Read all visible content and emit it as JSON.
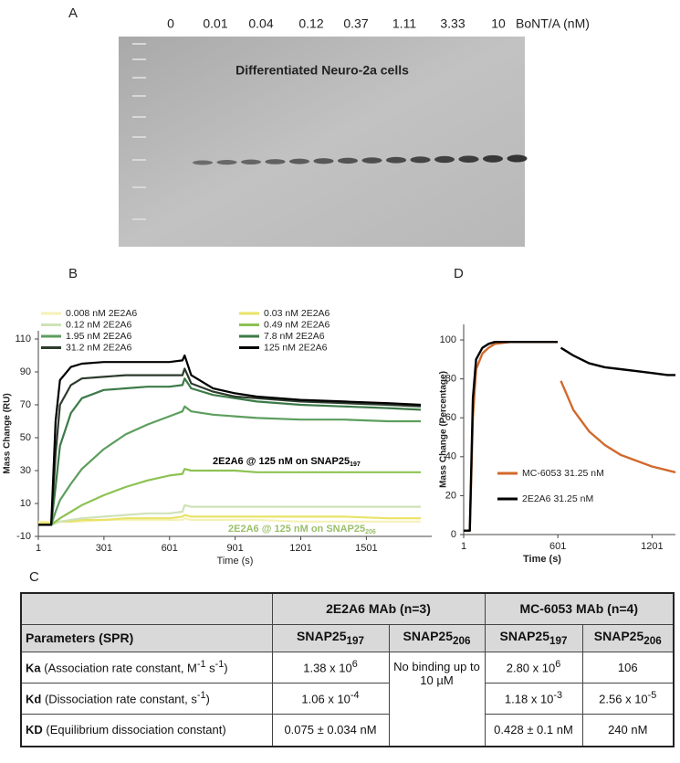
{
  "panel_a": {
    "label": "A",
    "concentrations": [
      "0",
      "0.01",
      "0.04",
      "0.12",
      "0.37",
      "1.11",
      "3.33",
      "10"
    ],
    "unit": "BoNT/A (nM)",
    "caption": "Differentiated Neuro-2a cells"
  },
  "chart_data": [
    {
      "type": "line",
      "label": "B",
      "x_label": "Time (s)",
      "y_label": "Mass Change (RU)",
      "x": [
        1,
        60,
        80,
        100,
        150,
        200,
        300,
        400,
        500,
        600,
        660,
        670,
        700,
        800,
        900,
        1000,
        1200,
        1400,
        1600,
        1750
      ],
      "xlim": [
        1,
        1800
      ],
      "xticks": [
        1,
        301,
        601,
        901,
        1201,
        1501
      ],
      "ylim": [
        -10,
        115
      ],
      "yticks": [
        -10,
        10,
        30,
        50,
        70,
        90,
        110
      ],
      "legend": "top",
      "series": [
        {
          "name": "0.008 nM 2E2A6",
          "color": "#f6f1b8",
          "values": [
            -1,
            -1,
            -1,
            -1,
            -1,
            -1,
            0,
            0,
            0,
            0,
            0,
            1,
            0,
            0,
            0,
            0,
            -1,
            -1,
            -1,
            -1
          ]
        },
        {
          "name": "0.03 nM 2E2A6",
          "color": "#e9e366",
          "values": [
            -2,
            -2,
            -2,
            -1,
            -1,
            0,
            0,
            1,
            1,
            1,
            2,
            3,
            2,
            2,
            2,
            2,
            2,
            2,
            1,
            1
          ]
        },
        {
          "name": "0.12 nM 2E2A6",
          "color": "#cfe2b8",
          "values": [
            -3,
            -3,
            -2,
            -1,
            0,
            1,
            2,
            3,
            4,
            4,
            5,
            9,
            8,
            8,
            8,
            8,
            8,
            8,
            8,
            8
          ]
        },
        {
          "name": "0.49 nM 2E2A6",
          "color": "#8dc253",
          "values": [
            -3,
            -3,
            -1,
            1,
            5,
            9,
            15,
            20,
            24,
            27,
            28,
            31,
            30,
            30,
            30,
            29,
            29,
            29,
            29,
            29
          ]
        },
        {
          "name": "1.95 nM 2E2A6",
          "color": "#5c9e5e",
          "values": [
            -3,
            -3,
            5,
            12,
            22,
            31,
            43,
            52,
            58,
            63,
            66,
            69,
            66,
            64,
            63,
            62,
            61,
            61,
            60,
            60
          ]
        },
        {
          "name": "7.8 nM 2E2A6",
          "color": "#3c7a48",
          "values": [
            -3,
            -3,
            20,
            45,
            65,
            74,
            79,
            80,
            81,
            81,
            82,
            86,
            80,
            76,
            74,
            72,
            70,
            69,
            68,
            67
          ]
        },
        {
          "name": "31.2 nM 2E2A6",
          "color": "#2c3b2c",
          "values": [
            -3,
            -3,
            40,
            70,
            82,
            86,
            87,
            88,
            88,
            88,
            88,
            92,
            83,
            78,
            75,
            74,
            72,
            71,
            70,
            69
          ]
        },
        {
          "name": "125 nM 2E2A6",
          "color": "#000000",
          "values": [
            -3,
            -3,
            60,
            85,
            93,
            95,
            96,
            96,
            96,
            96,
            97,
            100,
            88,
            80,
            77,
            75,
            73,
            72,
            71,
            70
          ]
        }
      ],
      "annotations": [
        [
          "2E2A6 @ 125 nM on SNAP25",
          {
            "sub": "197"
          }
        ],
        [
          "2E2A6 @ 125 nM on SNAP25",
          {
            "sub": "206"
          }
        ]
      ]
    },
    {
      "type": "line",
      "label": "D",
      "x_label": "Time (s)",
      "y_label": "Mass Change (Percentage)",
      "x": [
        1,
        40,
        60,
        80,
        120,
        160,
        200,
        300,
        400,
        500,
        600,
        610,
        620,
        700,
        800,
        900,
        1000,
        1100,
        1200,
        1300,
        1350
      ],
      "xlim": [
        1,
        1350
      ],
      "xticks": [
        1,
        601,
        1201
      ],
      "ylim": [
        0,
        108
      ],
      "yticks": [
        0,
        20,
        40,
        60,
        80,
        100
      ],
      "legend": "lower left",
      "series": [
        {
          "name": "MC-6053 31.25 nM",
          "color": "#d2692c",
          "values": [
            2,
            2,
            60,
            85,
            93,
            96,
            98,
            99,
            99,
            99,
            99,
            null,
            79,
            64,
            53,
            46,
            41,
            38,
            35,
            33,
            32
          ]
        },
        {
          "name": "2E2A6 31.25 nM",
          "color": "#000000",
          "values": [
            2,
            2,
            70,
            90,
            96,
            98,
            99,
            99,
            99,
            99,
            99,
            null,
            96,
            92,
            88,
            86,
            85,
            84,
            83,
            82,
            82
          ]
        }
      ]
    }
  ],
  "table": {
    "label": "C",
    "groups": [
      "2E2A6 MAb (n=3)",
      "MC-6053 MAb (n=4)"
    ],
    "columns": [
      "Parameters (SPR)",
      [
        "SNAP25",
        {
          "sub": "197"
        }
      ],
      [
        "SNAP25",
        {
          "sub": "206"
        }
      ],
      [
        "SNAP25",
        {
          "sub": "197"
        }
      ],
      [
        "SNAP25",
        {
          "sub": "206"
        }
      ]
    ],
    "rows": [
      [
        [
          {
            "bold": "Ka"
          },
          " (Association rate constant, M",
          {
            "sup": "-1"
          },
          " s",
          {
            "sup": "-1"
          },
          ")"
        ],
        [
          "1.38 x 10",
          {
            "sup": "6"
          }
        ],
        "No binding up to 10 µM",
        [
          "2.80 x 10",
          {
            "sup": "6"
          }
        ],
        "106"
      ],
      [
        [
          {
            "bold": "Kd"
          },
          " (Dissociation rate constant, s",
          {
            "sup": "-1"
          },
          ")"
        ],
        [
          "1.06 x 10",
          {
            "sup": "-4"
          }
        ],
        [
          "1.18 x 10",
          {
            "sup": "-3"
          }
        ],
        [
          "2.56 x 10",
          {
            "sup": "-5"
          }
        ]
      ],
      [
        [
          {
            "bold": "KD"
          },
          " (Equilibrium dissociation constant)"
        ],
        "0.075 ± 0.034 nM",
        "0.428 ± 0.1 nM",
        "240 nM"
      ]
    ]
  }
}
